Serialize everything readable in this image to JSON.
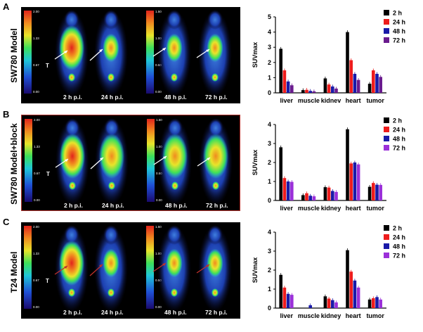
{
  "panels": [
    {
      "letter": "A",
      "model_label": "SW780 Model",
      "scale_left": {
        "ticks": [
          "2.00",
          "1.33",
          "0.67",
          "0.00"
        ]
      },
      "scale_right": {
        "ticks": [
          "1.50",
          "1.00",
          "0.50",
          "0.00"
        ]
      },
      "time_labels": [
        "2 h p.i.",
        "24 h p.i.",
        "48 h p.i.",
        "72 h p.i."
      ],
      "tumor_marker": "T"
    },
    {
      "letter": "B",
      "model_label": "SW780 Model+block",
      "scale_left": {
        "ticks": [
          "2.00",
          "1.33",
          "0.67",
          "0.00"
        ]
      },
      "scale_right": {
        "ticks": [
          "1.50",
          "1.00",
          "0.50",
          "0.00"
        ]
      },
      "time_labels": [
        "2 h p.i.",
        "24 h p.i.",
        "48 h p.i.",
        "72 h p.i."
      ],
      "tumor_marker": "T"
    },
    {
      "letter": "C",
      "model_label": "T24 Model",
      "scale_left": {
        "ticks": [
          "2.00",
          "1.33",
          "0.67",
          "0.00"
        ]
      },
      "scale_right": {
        "ticks": [
          "1.50",
          "1.00",
          "0.50",
          "0.00"
        ]
      },
      "time_labels": [
        "2 h p.i.",
        "24 h p.i.",
        "48 h p.i.",
        "72 h p.i."
      ],
      "tumor_marker": "T"
    }
  ],
  "chart_data": [
    {
      "type": "bar",
      "categories": [
        "liver",
        "muscle",
        "kidnev",
        "heart",
        "tumor"
      ],
      "ylabel": "SUVmax",
      "ylim": [
        0,
        5
      ],
      "yticks": [
        "0",
        "1",
        "2",
        "3",
        "4",
        "5"
      ],
      "legend_position": "top-right",
      "series": [
        {
          "name": "2 h",
          "color": "#000000",
          "values": [
            2.9,
            0.18,
            0.95,
            4.0,
            0.6
          ]
        },
        {
          "name": "24 h",
          "color": "#ee1c1c",
          "values": [
            1.48,
            0.2,
            0.55,
            2.15,
            1.48
          ]
        },
        {
          "name": "48 h",
          "color": "#1a1aa8",
          "values": [
            0.75,
            0.13,
            0.42,
            1.25,
            1.25
          ]
        },
        {
          "name": "72 h",
          "color": "#6a1b8e",
          "values": [
            0.5,
            0.1,
            0.28,
            0.85,
            1.05
          ]
        }
      ]
    },
    {
      "type": "bar",
      "categories": [
        "liver",
        "muscle",
        "kidney",
        "heart",
        "tumor"
      ],
      "ylabel": "SUVmax",
      "ylim": [
        0,
        4
      ],
      "yticks": [
        "0",
        "1",
        "2",
        "3",
        "4"
      ],
      "legend_position": "top-right",
      "series": [
        {
          "name": "2 h",
          "color": "#000000",
          "values": [
            2.8,
            0.28,
            0.7,
            3.75,
            0.72
          ]
        },
        {
          "name": "24 h",
          "color": "#ee1c1c",
          "values": [
            1.18,
            0.38,
            0.68,
            1.95,
            0.92
          ]
        },
        {
          "name": "48 h",
          "color": "#1a1aa8",
          "values": [
            1.0,
            0.25,
            0.5,
            2.0,
            0.83
          ]
        },
        {
          "name": "72 h",
          "color": "#9b30d9",
          "values": [
            0.98,
            0.22,
            0.45,
            1.9,
            0.82
          ]
        }
      ]
    },
    {
      "type": "bar",
      "categories": [
        "liver",
        "muscle",
        "kidney",
        "heart",
        "tumor"
      ],
      "ylabel": "SUVmax",
      "ylim": [
        0,
        4
      ],
      "yticks": [
        "0",
        "1",
        "2",
        "3",
        "4"
      ],
      "legend_position": "top-right",
      "series": [
        {
          "name": "2 h",
          "color": "#000000",
          "values": [
            1.75,
            0.0,
            0.62,
            3.05,
            0.45
          ]
        },
        {
          "name": "24 h",
          "color": "#ee1c1c",
          "values": [
            1.08,
            0.0,
            0.5,
            1.92,
            0.52
          ]
        },
        {
          "name": "48 h",
          "color": "#1a1aa8",
          "values": [
            0.75,
            0.15,
            0.42,
            1.45,
            0.58
          ]
        },
        {
          "name": "72 h",
          "color": "#9b30d9",
          "values": [
            0.7,
            0.0,
            0.3,
            1.08,
            0.45
          ]
        }
      ]
    }
  ]
}
